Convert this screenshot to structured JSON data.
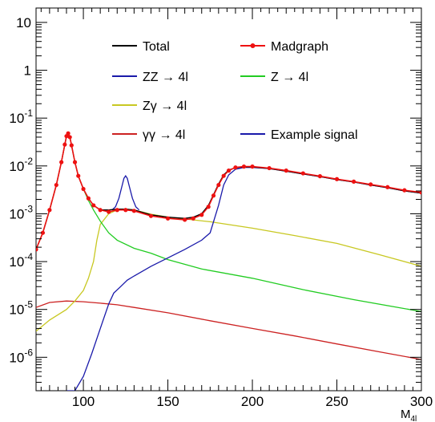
{
  "chart_data": {
    "type": "line",
    "title": "",
    "xlabel": "M",
    "xlabel_sub": "4l",
    "ylabel": "",
    "xlim": [
      72,
      300
    ],
    "ylim": [
      2e-07,
      20
    ],
    "y_scale": "log",
    "grid": false,
    "x_ticks": [
      {
        "value": 100,
        "label": "100"
      },
      {
        "value": 150,
        "label": "150"
      },
      {
        "value": 200,
        "label": "200"
      },
      {
        "value": 250,
        "label": "250"
      },
      {
        "value": 300,
        "label": "300"
      }
    ],
    "y_ticks": [
      {
        "value": 10,
        "base": "10",
        "exp": ""
      },
      {
        "value": 1,
        "base": "1",
        "exp": ""
      },
      {
        "value": 0.1,
        "base": "10",
        "exp": "-1"
      },
      {
        "value": 0.01,
        "base": "10",
        "exp": "-2"
      },
      {
        "value": 0.001,
        "base": "10",
        "exp": "-3"
      },
      {
        "value": 0.0001,
        "base": "10",
        "exp": "-4"
      },
      {
        "value": 1e-05,
        "base": "10",
        "exp": "-5"
      },
      {
        "value": 1e-06,
        "base": "10",
        "exp": "-6"
      }
    ],
    "legend_placement": "top",
    "series": [
      {
        "name": "Total",
        "color": "#000000",
        "marker": "line",
        "x": [
          72,
          76,
          80,
          84,
          87,
          89,
          90,
          91,
          92,
          93,
          95,
          97,
          100,
          103,
          106,
          110,
          115,
          120,
          125,
          130,
          140,
          150,
          160,
          165,
          170,
          174,
          177,
          180,
          183,
          186,
          190,
          195,
          200,
          210,
          220,
          230,
          240,
          250,
          260,
          270,
          280,
          290,
          300
        ],
        "y": [
          0.00018,
          0.0004,
          0.0012,
          0.004,
          0.012,
          0.028,
          0.042,
          0.048,
          0.04,
          0.027,
          0.012,
          0.0062,
          0.0033,
          0.0021,
          0.0015,
          0.0012,
          0.0012,
          0.00125,
          0.00125,
          0.0012,
          0.00095,
          0.00085,
          0.0008,
          0.00085,
          0.001,
          0.0015,
          0.0025,
          0.0042,
          0.0065,
          0.0082,
          0.0092,
          0.0095,
          0.0095,
          0.0088,
          0.0078,
          0.0068,
          0.006,
          0.0052,
          0.0046,
          0.004,
          0.0035,
          0.003,
          0.0027
        ]
      },
      {
        "name": "Madgraph",
        "color": "#ee1111",
        "marker": "dots",
        "x": [
          72,
          76,
          80,
          84,
          87,
          89,
          90,
          91,
          92,
          93,
          95,
          97,
          100,
          103,
          106,
          110,
          115,
          120,
          125,
          130,
          140,
          150,
          160,
          165,
          170,
          174,
          177,
          180,
          183,
          186,
          190,
          195,
          200,
          210,
          220,
          230,
          240,
          250,
          260,
          270,
          280,
          290,
          300
        ],
        "y": [
          0.00018,
          0.0004,
          0.0012,
          0.004,
          0.012,
          0.028,
          0.042,
          0.048,
          0.04,
          0.027,
          0.012,
          0.0062,
          0.0033,
          0.0021,
          0.0015,
          0.0012,
          0.0011,
          0.0012,
          0.0012,
          0.00115,
          0.0009,
          0.0008,
          0.00075,
          0.0008,
          0.00095,
          0.0014,
          0.0024,
          0.004,
          0.0062,
          0.008,
          0.0093,
          0.0097,
          0.0097,
          0.009,
          0.008,
          0.007,
          0.0061,
          0.0053,
          0.0047,
          0.0041,
          0.0036,
          0.0031,
          0.0028
        ]
      },
      {
        "name": "ZZ → 4l",
        "color": "#1a1aaa",
        "marker": "line",
        "x": [
          90,
          95,
          100,
          105,
          110,
          115,
          118,
          122,
          126,
          130,
          140,
          150,
          160,
          170,
          175,
          180,
          183,
          186,
          190,
          195,
          200,
          210,
          220,
          230,
          240,
          250,
          260,
          270,
          280,
          290,
          300
        ],
        "y": [
          2e-07,
          2e-07,
          4e-07,
          1.2e-06,
          4e-06,
          1.3e-05,
          2.2e-05,
          3e-05,
          4.1e-05,
          5e-05,
          8e-05,
          0.00012,
          0.00018,
          0.00028,
          0.0004,
          0.0015,
          0.004,
          0.0065,
          0.0085,
          0.0093,
          0.0093,
          0.0088,
          0.0078,
          0.0068,
          0.006,
          0.0052,
          0.0046,
          0.004,
          0.0035,
          0.003,
          0.0027
        ]
      },
      {
        "name": "Z → 4l",
        "color": "#22cc22",
        "marker": "line",
        "x": [
          72,
          76,
          80,
          84,
          87,
          89,
          90,
          91,
          92,
          93,
          95,
          97,
          100,
          103,
          106,
          110,
          115,
          120,
          130,
          140,
          150,
          170,
          200,
          230,
          260,
          300
        ],
        "y": [
          0.00018,
          0.0004,
          0.0012,
          0.004,
          0.012,
          0.028,
          0.042,
          0.048,
          0.04,
          0.027,
          0.012,
          0.0062,
          0.0033,
          0.0019,
          0.0012,
          0.0007,
          0.0004,
          0.00028,
          0.00019,
          0.00015,
          0.00011,
          7e-05,
          4.5e-05,
          2.6e-05,
          1.6e-05,
          9e-06
        ]
      },
      {
        "name": "Zγ → 4l",
        "color": "#c8c822",
        "marker": "line",
        "x": [
          72,
          80,
          90,
          95,
          100,
          103,
          106,
          108,
          110,
          115,
          120,
          125,
          130,
          140,
          150,
          160,
          175,
          200,
          225,
          250,
          275,
          300
        ],
        "y": [
          3.5e-06,
          6e-06,
          1e-05,
          1.5e-05,
          2.5e-05,
          4.5e-05,
          0.0001,
          0.00028,
          0.0006,
          0.001,
          0.0012,
          0.00125,
          0.0012,
          0.00098,
          0.00085,
          0.00078,
          0.00068,
          0.0005,
          0.00035,
          0.00024,
          0.00014,
          8e-05
        ]
      },
      {
        "name": "γγ → 4l",
        "color": "#cc2222",
        "marker": "line",
        "x": [
          72,
          80,
          90,
          100,
          110,
          120,
          130,
          150,
          175,
          200,
          225,
          250,
          275,
          300
        ],
        "y": [
          1.1e-05,
          1.4e-05,
          1.5e-05,
          1.45e-05,
          1.35e-05,
          1.25e-05,
          1.1e-05,
          8.5e-06,
          5.8e-06,
          4e-06,
          2.8e-06,
          1.9e-06,
          1.3e-06,
          9e-07
        ]
      },
      {
        "name": "Example signal",
        "color": "#1a1aaa",
        "marker": "line",
        "x": [
          117,
          119,
          121,
          123,
          124,
          125,
          126,
          127,
          129,
          131,
          133
        ],
        "y": [
          0.0012,
          0.0014,
          0.0021,
          0.004,
          0.0055,
          0.0062,
          0.0055,
          0.004,
          0.0021,
          0.0014,
          0.0012
        ]
      }
    ],
    "legend": [
      {
        "label": "Total",
        "color": "#000000",
        "marker": "line"
      },
      {
        "label": "Madgraph",
        "color": "#ee1111",
        "marker": "dots"
      },
      {
        "label": "ZZ → 4l",
        "color": "#1a1aaa",
        "marker": "line"
      },
      {
        "label": "Z → 4l",
        "color": "#22cc22",
        "marker": "line"
      },
      {
        "label": "Zγ → 4l",
        "color": "#c8c822",
        "marker": "line"
      },
      {
        "label": "γγ → 4l",
        "color": "#cc2222",
        "marker": "line"
      },
      {
        "label": "Example signal",
        "color": "#1a1aaa",
        "marker": "line"
      }
    ]
  }
}
